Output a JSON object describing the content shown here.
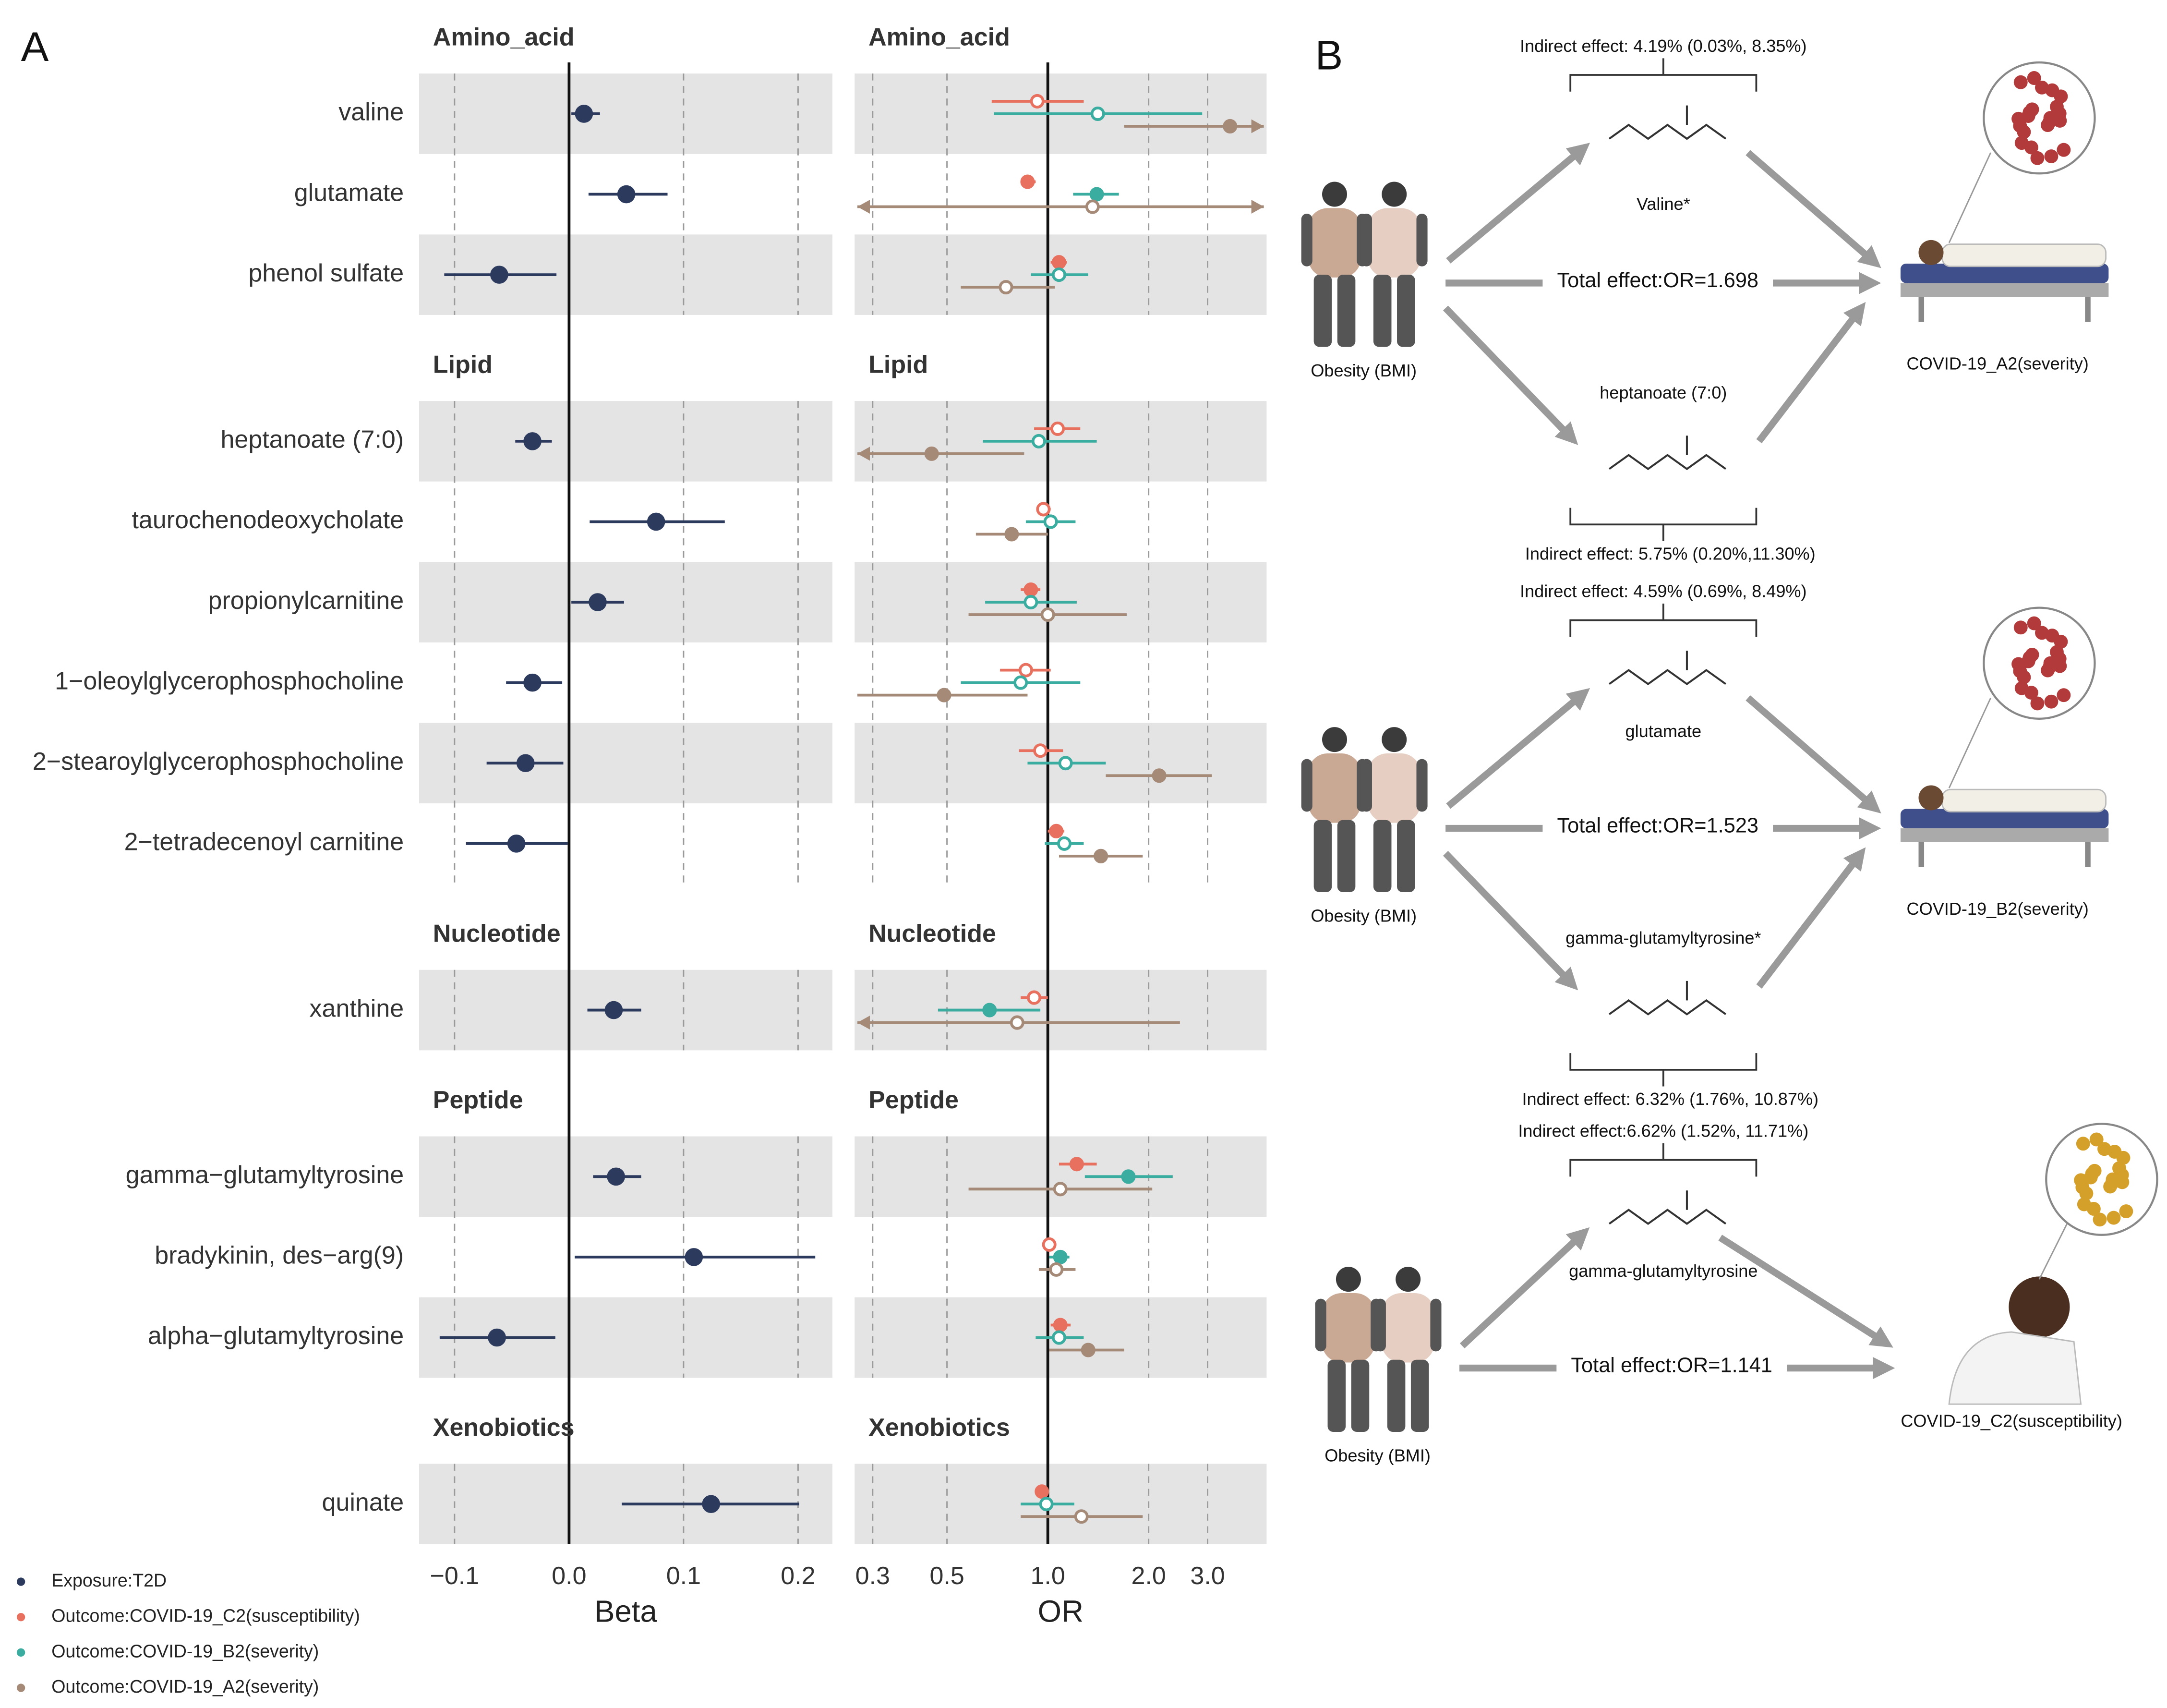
{
  "panel_labels": [
    "A",
    "B"
  ],
  "chart_data": [
    {
      "type": "forest",
      "xlabel": "Beta",
      "xlim": [
        -0.131,
        0.23
      ],
      "reference": 0,
      "xticks": [
        {
          "value": -0.1,
          "label": "−0.1"
        },
        {
          "value": 0,
          "label": "0.0"
        },
        0.1,
        0.2
      ],
      "groups": [
        {
          "name": "Amino_acid",
          "categories": [
            "valine",
            "glutamate",
            "phenol sulfate"
          ]
        },
        {
          "name": "Lipid",
          "categories": [
            "heptanoate (7:0)",
            "taurochenodeoxycholate",
            "propionylcarnitine",
            "1−oleoylglycerophosphocholine",
            "2−stearoylglycerophosphocholine",
            "2−tetradecenoyl carnitine"
          ]
        },
        {
          "name": "Nucleotide",
          "categories": [
            "xanthine"
          ]
        },
        {
          "name": "Peptide",
          "categories": [
            "gamma−glutamyltyrosine",
            "bradykinin, des−arg(9)",
            "alpha−glutamyltyrosine"
          ]
        },
        {
          "name": "Xenobiotics",
          "categories": [
            "quinate"
          ]
        }
      ],
      "series": [
        {
          "name": "Exposure:T2D",
          "color": "#2c3a5e",
          "values": [
            0.013,
            0.05,
            -0.061,
            -0.032,
            0.076,
            0.025,
            -0.032,
            -0.038,
            -0.046,
            0.039,
            0.041,
            0.109,
            -0.063,
            0.124
          ],
          "lower": [
            0.002,
            0.017,
            -0.109,
            -0.047,
            0.018,
            0.002,
            -0.055,
            -0.072,
            -0.09,
            0.016,
            0.021,
            0.005,
            -0.113,
            0.046
          ],
          "upper": [
            0.027,
            0.086,
            -0.011,
            -0.015,
            0.136,
            0.048,
            -0.006,
            -0.005,
            -0.001,
            0.063,
            0.063,
            0.215,
            -0.012,
            0.201
          ]
        }
      ]
    },
    {
      "type": "forest",
      "log": true,
      "xlabel": "OR",
      "xlim": [
        0.265,
        4.5
      ],
      "reference": 1,
      "xticks": [
        0.3,
        0.5,
        {
          "value": 1,
          "label": "1.0"
        },
        {
          "value": 2,
          "label": "2.0"
        },
        {
          "value": 3,
          "label": "3.0"
        }
      ],
      "group_titles": [
        "Amino_acid",
        "Lipid",
        "Nucleotide",
        "Peptide",
        "Xenobiotics"
      ],
      "series": [
        {
          "name": "Outcome:COVID-19_C2(susceptibility)",
          "color": "#e8705f",
          "values": [
            0.93,
            0.87,
            1.08,
            1.07,
            0.97,
            0.89,
            0.86,
            0.95,
            1.06,
            0.91,
            1.22,
            1.01,
            1.09,
            0.96
          ],
          "lower": [
            0.68,
            0.83,
            1.02,
            0.91,
            0.93,
            0.83,
            0.72,
            0.82,
            1.0,
            0.83,
            1.08,
            0.98,
            1.02,
            0.93
          ],
          "upper": [
            1.28,
            0.92,
            1.14,
            1.25,
            1.02,
            0.95,
            1.02,
            1.11,
            1.12,
            1.0,
            1.4,
            1.04,
            1.17,
            1.0
          ],
          "filled": [
            false,
            true,
            true,
            false,
            false,
            true,
            false,
            false,
            true,
            false,
            true,
            false,
            true,
            true
          ]
        },
        {
          "name": "Outcome:COVID-19_B2(severity)",
          "color": "#3aada0",
          "values": [
            1.41,
            1.4,
            1.08,
            0.94,
            1.02,
            0.89,
            0.83,
            1.13,
            1.12,
            0.67,
            1.74,
            1.09,
            1.08,
            0.99
          ],
          "lower": [
            0.69,
            1.19,
            0.89,
            0.64,
            0.86,
            0.65,
            0.55,
            0.87,
            0.98,
            0.47,
            1.29,
            1.01,
            0.92,
            0.83
          ],
          "upper": [
            2.89,
            1.63,
            1.32,
            1.4,
            1.21,
            1.22,
            1.25,
            1.49,
            1.28,
            0.95,
            2.36,
            1.16,
            1.28,
            1.2
          ],
          "filled": [
            false,
            true,
            false,
            false,
            false,
            false,
            false,
            false,
            false,
            true,
            true,
            true,
            false,
            false
          ]
        },
        {
          "name": "Outcome:COVID-19_A2(severity)",
          "color": "#a58a78",
          "values": [
            3.5,
            1.36,
            0.75,
            0.45,
            0.78,
            1.0,
            0.49,
            2.15,
            1.44,
            0.81,
            1.09,
            1.06,
            1.32,
            1.26
          ],
          "lower": [
            1.69,
            0.2,
            0.55,
            0.2,
            0.61,
            0.58,
            0.27,
            1.49,
            1.08,
            0.2,
            0.58,
            0.94,
            1.01,
            0.83
          ],
          "upper": [
            6,
            8,
            1.05,
            0.85,
            1.0,
            1.72,
            0.87,
            3.09,
            1.92,
            2.48,
            2.05,
            1.21,
            1.69,
            1.92
          ],
          "filled": [
            true,
            false,
            false,
            true,
            true,
            false,
            true,
            true,
            true,
            false,
            false,
            false,
            true,
            false
          ]
        }
      ]
    }
  ],
  "diagram": {
    "models": [
      {
        "exposure": "Obesity (BMI)",
        "outcome": "COVID-19_A2(severity)",
        "total": "Total effect:OR=1.698",
        "mediators": [
          {
            "name": "Valine*",
            "effect": "Indirect effect: 4.19% (0.03%, 8.35%)"
          },
          {
            "name": "heptanoate (7:0)",
            "effect": "Indirect effect: 5.75% (0.20%,11.30%)"
          }
        ]
      },
      {
        "exposure": "Obesity (BMI)",
        "outcome": "COVID-19_B2(severity)",
        "total": "Total effect:OR=1.523",
        "mediators": [
          {
            "name": "glutamate",
            "effect": "Indirect effect: 4.59% (0.69%, 8.49%)"
          },
          {
            "name": "gamma-glutamyltyrosine*",
            "effect": "Indirect effect: 6.32% (1.76%, 10.87%)"
          }
        ]
      },
      {
        "exposure": "Obesity (BMI)",
        "outcome": "COVID-19_C2(susceptibility)",
        "total": "Total effect:OR=1.141",
        "mediators": [
          {
            "name": "gamma-glutamyltyrosine",
            "effect": "Indirect effect:6.62% (1.52%, 11.71%)"
          }
        ]
      }
    ]
  }
}
